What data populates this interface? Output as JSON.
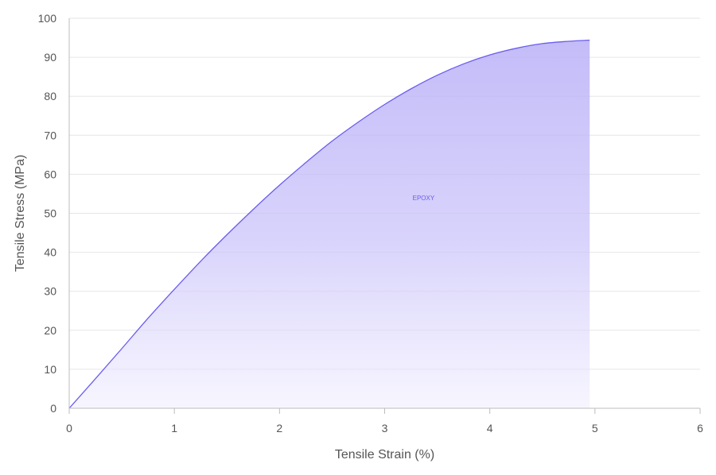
{
  "chart_data": {
    "type": "area",
    "xlabel": "Tensile Strain (%)",
    "ylabel": "Tensile Stress (MPa)",
    "xlim": [
      0,
      6
    ],
    "ylim": [
      0,
      100
    ],
    "xticks": [
      "0",
      "1",
      "2",
      "3",
      "4",
      "5",
      "6"
    ],
    "yticks": [
      "0",
      "10",
      "20",
      "30",
      "40",
      "50",
      "60",
      "70",
      "80",
      "90",
      "100"
    ],
    "grid": "horizontal",
    "series": [
      {
        "name": "EPOXY",
        "color": "#6a5cf0",
        "x": [
          0,
          0.25,
          0.5,
          0.75,
          1.0,
          1.25,
          1.5,
          1.75,
          2.0,
          2.25,
          2.5,
          2.75,
          3.0,
          3.25,
          3.5,
          3.75,
          4.0,
          4.25,
          4.5,
          4.75,
          4.95
        ],
        "y": [
          0,
          7.6,
          15.3,
          23.1,
          30.5,
          37.7,
          44.5,
          51.0,
          57.2,
          63.0,
          68.5,
          73.4,
          77.9,
          81.9,
          85.4,
          88.3,
          90.6,
          92.3,
          93.5,
          94.1,
          94.4
        ]
      }
    ]
  }
}
